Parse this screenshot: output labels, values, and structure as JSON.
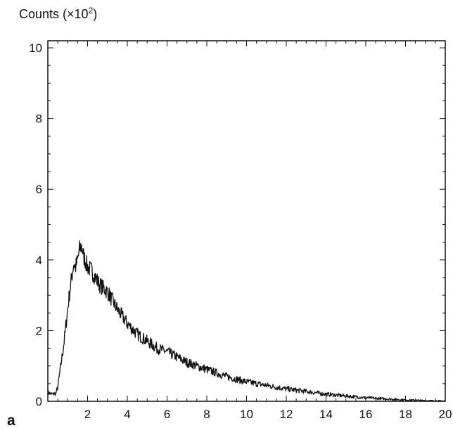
{
  "chart_data": {
    "type": "line",
    "ylabel_main": "Counts (×10",
    "ylabel_exp": "2",
    "ylabel_close": ")",
    "panel_label": "a",
    "xlim": [
      0,
      20
    ],
    "ylim": [
      0,
      10.2
    ],
    "x_ticks": [
      "2",
      "4",
      "6",
      "8",
      "10",
      "12",
      "14",
      "16",
      "18",
      "20"
    ],
    "y_ticks": [
      "0",
      "2",
      "4",
      "6",
      "8",
      "10"
    ],
    "grid": false,
    "line_color": "#111111",
    "series": [
      {
        "x": [
          0,
          0.2,
          0.4,
          0.5,
          0.6,
          0.7,
          0.8,
          0.9,
          1.0,
          1.1,
          1.2,
          1.3,
          1.4,
          1.5,
          1.6,
          1.7,
          1.8,
          2.0,
          2.2,
          2.4,
          2.6,
          2.8,
          3.0,
          3.2,
          3.5,
          4.0,
          4.5,
          5.0,
          5.5,
          6.0,
          6.5,
          7.0,
          7.5,
          8.0,
          9.0,
          10.0,
          11.0,
          12.0,
          13.0,
          14.0,
          15.0,
          16.0,
          17.0,
          18.0,
          19.0,
          20.0
        ],
        "values": [
          0.25,
          0.2,
          0.22,
          0.4,
          0.8,
          1.2,
          1.6,
          2.1,
          2.6,
          3.1,
          3.5,
          3.9,
          3.8,
          4.0,
          4.3,
          4.4,
          4.1,
          3.8,
          3.7,
          3.5,
          3.3,
          3.2,
          3.1,
          2.9,
          2.6,
          2.2,
          1.9,
          1.7,
          1.5,
          1.4,
          1.25,
          1.1,
          1.0,
          0.9,
          0.7,
          0.55,
          0.45,
          0.35,
          0.28,
          0.2,
          0.15,
          0.1,
          0.07,
          0.04,
          0.02,
          0.01
        ]
      }
    ]
  }
}
